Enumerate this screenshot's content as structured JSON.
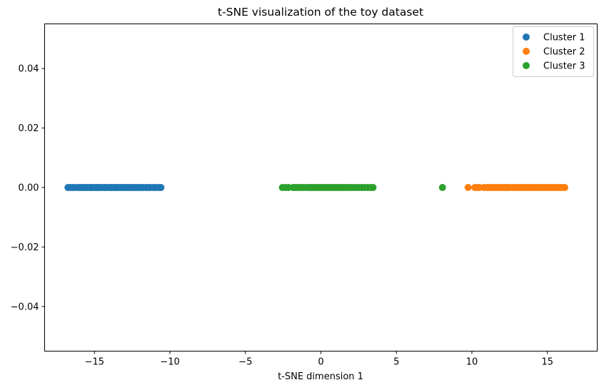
{
  "chart_data": {
    "type": "scatter",
    "title": "t-SNE visualization of the toy dataset",
    "xlabel": "t-SNE dimension 1",
    "ylabel": "",
    "xlim": [
      -18.3,
      18.3
    ],
    "ylim": [
      -0.055,
      0.055
    ],
    "xticks": [
      -15,
      -10,
      -5,
      0,
      5,
      10,
      15
    ],
    "xtick_labels": [
      "−15",
      "−10",
      "−5",
      "0",
      "5",
      "10",
      "15"
    ],
    "yticks": [
      0.04,
      0.02,
      0.0,
      -0.02,
      -0.04
    ],
    "ytick_labels": [
      "0.04",
      "0.02",
      "0.00",
      "−0.02",
      "−0.04"
    ],
    "grid": false,
    "legend_position": "top-right",
    "series": [
      {
        "name": "Cluster 1",
        "color": "#1f77b4",
        "x": [
          -16.75,
          -16.6,
          -16.45,
          -16.3,
          -16.1,
          -15.95,
          -15.8,
          -15.7,
          -15.55,
          -15.45,
          -15.3,
          -15.2,
          -15.05,
          -14.9,
          -14.8,
          -14.65,
          -14.5,
          -14.35,
          -14.25,
          -14.1,
          -13.95,
          -13.85,
          -13.7,
          -13.55,
          -13.45,
          -13.3,
          -13.15,
          -13.0,
          -12.85,
          -12.7,
          -12.55,
          -12.4,
          -12.25,
          -12.1,
          -11.95,
          -11.8,
          -11.6,
          -11.45,
          -11.3,
          -11.1,
          -10.95,
          -10.75,
          -10.6
        ],
        "y": [
          0,
          0,
          0,
          0,
          0,
          0,
          0,
          0,
          0,
          0,
          0,
          0,
          0,
          0,
          0,
          0,
          0,
          0,
          0,
          0,
          0,
          0,
          0,
          0,
          0,
          0,
          0,
          0,
          0,
          0,
          0,
          0,
          0,
          0,
          0,
          0,
          0,
          0,
          0,
          0,
          0,
          0,
          0
        ]
      },
      {
        "name": "Cluster 2",
        "color": "#ff7f0e",
        "x": [
          9.75,
          10.2,
          10.35,
          10.5,
          10.8,
          11.0,
          11.15,
          11.3,
          11.45,
          11.6,
          11.75,
          11.9,
          12.05,
          12.2,
          12.35,
          12.5,
          12.7,
          12.85,
          13.0,
          13.15,
          13.3,
          13.45,
          13.6,
          13.75,
          13.9,
          14.05,
          14.2,
          14.35,
          14.5,
          14.65,
          14.8,
          14.95,
          15.1,
          15.25,
          15.4,
          15.55,
          15.7,
          15.85,
          16.0,
          16.15
        ],
        "y": [
          0,
          0,
          0,
          0,
          0,
          0,
          0,
          0,
          0,
          0,
          0,
          0,
          0,
          0,
          0,
          0,
          0,
          0,
          0,
          0,
          0,
          0,
          0,
          0,
          0,
          0,
          0,
          0,
          0,
          0,
          0,
          0,
          0,
          0,
          0,
          0,
          0,
          0,
          0,
          0
        ]
      },
      {
        "name": "Cluster 3",
        "color": "#2ca02c",
        "x": [
          -2.55,
          -2.35,
          -2.15,
          -1.85,
          -1.7,
          -1.55,
          -1.4,
          -1.25,
          -1.1,
          -0.9,
          -0.75,
          -0.6,
          -0.45,
          -0.3,
          -0.15,
          0.0,
          0.15,
          0.3,
          0.45,
          0.6,
          0.75,
          0.9,
          1.05,
          1.2,
          1.35,
          1.5,
          1.65,
          1.8,
          1.95,
          2.1,
          2.3,
          2.5,
          2.7,
          2.9,
          3.1,
          3.3,
          3.45,
          8.05
        ],
        "y": [
          0,
          0,
          0,
          0,
          0,
          0,
          0,
          0,
          0,
          0,
          0,
          0,
          0,
          0,
          0,
          0,
          0,
          0,
          0,
          0,
          0,
          0,
          0,
          0,
          0,
          0,
          0,
          0,
          0,
          0,
          0,
          0,
          0,
          0,
          0,
          0,
          0,
          0
        ]
      }
    ]
  }
}
